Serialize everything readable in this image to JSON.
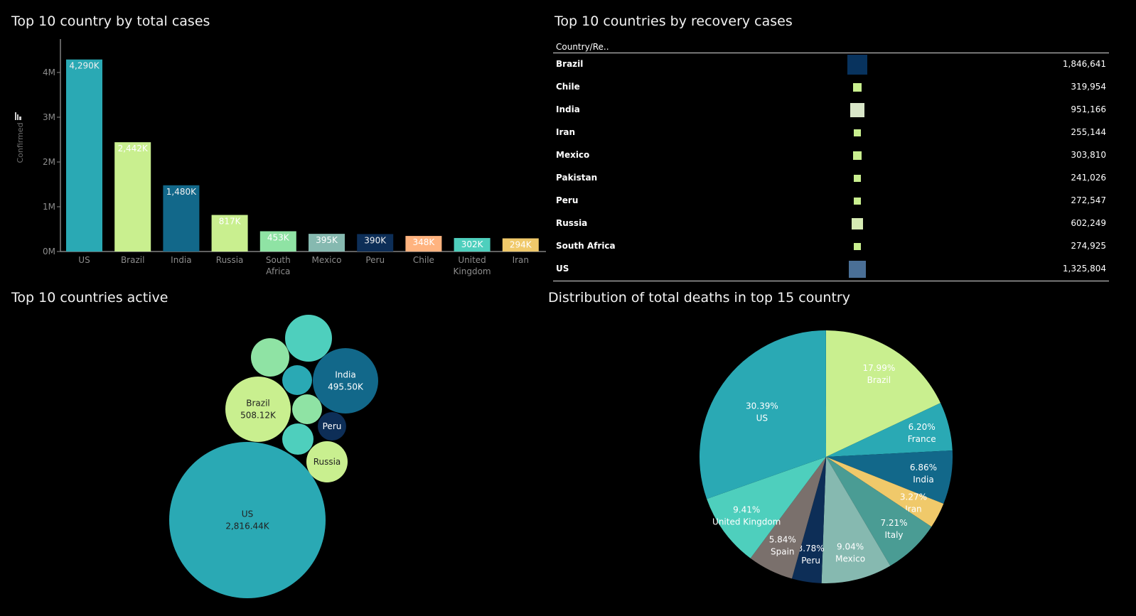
{
  "titles": {
    "bar": "Top 10 country by total cases",
    "recovery": "Top 10 countries by recovery cases",
    "active": "Top 10 countries active",
    "pie": "Distribution of total deaths in top 15 country"
  },
  "recovery_header": "Country/Re..",
  "chart_data": [
    {
      "type": "bar",
      "title": "Top 10 country by total cases",
      "ylabel": "Confirmed",
      "ylim": [
        0,
        4300000
      ],
      "yticks": [
        "0M",
        "1M",
        "2M",
        "3M",
        "4M"
      ],
      "categories": [
        "US",
        "Brazil",
        "India",
        "Russia",
        "South Africa",
        "Mexico",
        "Peru",
        "Chile",
        "United Kingdom",
        "Iran"
      ],
      "category_lines": [
        [
          "US"
        ],
        [
          "Brazil"
        ],
        [
          "India"
        ],
        [
          "Russia"
        ],
        [
          "South",
          "Africa"
        ],
        [
          "Mexico"
        ],
        [
          "Peru"
        ],
        [
          "Chile"
        ],
        [
          "United",
          "Kingdom"
        ],
        [
          "Iran"
        ]
      ],
      "values": [
        4290000,
        2442000,
        1480000,
        817000,
        453000,
        395000,
        390000,
        348000,
        302000,
        294000
      ],
      "labels": [
        "4,290K",
        "2,442K",
        "1,480K",
        "817K",
        "453K",
        "395K",
        "390K",
        "348K",
        "302K",
        "294K"
      ],
      "colors": [
        "#2aa9b4",
        "#c9ef8f",
        "#12688a",
        "#c9ef8f",
        "#8fe3a4",
        "#86b9b0",
        "#0d2e57",
        "#ffb37f",
        "#4ecfbd",
        "#f0c96a"
      ]
    },
    {
      "type": "table",
      "title": "Top 10 countries by recovery cases",
      "rows": [
        {
          "country": "Brazil",
          "value": 1846641,
          "label": "1,846,641",
          "color": "#08335e"
        },
        {
          "country": "Chile",
          "value": 319954,
          "label": "319,954",
          "color": "#c9ef8f"
        },
        {
          "country": "India",
          "value": 951166,
          "label": "951,166",
          "color": "#d9e6c8"
        },
        {
          "country": "Iran",
          "value": 255144,
          "label": "255,144",
          "color": "#c9ef8f"
        },
        {
          "country": "Mexico",
          "value": 303810,
          "label": "303,810",
          "color": "#c9ef8f"
        },
        {
          "country": "Pakistan",
          "value": 241026,
          "label": "241,026",
          "color": "#c9ef8f"
        },
        {
          "country": "Peru",
          "value": 272547,
          "label": "272,547",
          "color": "#c9ef8f"
        },
        {
          "country": "Russia",
          "value": 602249,
          "label": "602,249",
          "color": "#d6ebb4"
        },
        {
          "country": "South Africa",
          "value": 274925,
          "label": "274,925",
          "color": "#c9ef8f"
        },
        {
          "country": "US",
          "value": 1325804,
          "label": "1,325,804",
          "color": "#4a6f96"
        }
      ]
    },
    {
      "type": "bubble",
      "title": "Top 10 countries active",
      "bubbles": [
        {
          "name": "US",
          "value_label": "2,816.44K",
          "color": "#2aa9b4",
          "text_color": "#222222"
        },
        {
          "name": "Brazil",
          "value_label": "508.12K",
          "color": "#c9ef8f",
          "text_color": "#222222"
        },
        {
          "name": "India",
          "value_label": "495.50K",
          "color": "#12688a",
          "text_color": "#ffffff"
        },
        {
          "name": "Russia",
          "value_label": "",
          "color": "#c9ef8f",
          "text_color": "#222222"
        },
        {
          "name": "Peru",
          "value_label": "",
          "color": "#0d2e57",
          "text_color": "#ffffff"
        },
        {
          "name": "",
          "value_label": "",
          "color": "#4ecfbd",
          "text_color": "#222222"
        },
        {
          "name": "",
          "value_label": "",
          "color": "#8fe3a4",
          "text_color": "#222222"
        },
        {
          "name": "",
          "value_label": "",
          "color": "#2aa9b4",
          "text_color": "#222222"
        },
        {
          "name": "",
          "value_label": "",
          "color": "#8fe3a4",
          "text_color": "#222222"
        },
        {
          "name": "",
          "value_label": "",
          "color": "#4ecfbd",
          "text_color": "#222222"
        }
      ]
    },
    {
      "type": "pie",
      "title": "Distribution of total deaths in top 15 country",
      "slices": [
        {
          "name": "Brazil",
          "pct": 17.99,
          "label": "17.99%",
          "color": "#c9ef8f"
        },
        {
          "name": "France",
          "pct": 6.2,
          "label": "6.20%",
          "color": "#2aa9b4"
        },
        {
          "name": "India",
          "pct": 6.86,
          "label": "6.86%",
          "color": "#12688a"
        },
        {
          "name": "Iran",
          "pct": 3.27,
          "label": "3.27%",
          "color": "#f0c96a"
        },
        {
          "name": "Italy",
          "pct": 7.21,
          "label": "7.21%",
          "color": "#4a9c94"
        },
        {
          "name": "Mexico",
          "pct": 9.04,
          "label": "9.04%",
          "color": "#86b9b0"
        },
        {
          "name": "Peru",
          "pct": 3.78,
          "label": "3.78%",
          "color": "#0d2e57"
        },
        {
          "name": "Spain",
          "pct": 5.84,
          "label": "5.84%",
          "color": "#7a706c"
        },
        {
          "name": "United Kingdom",
          "pct": 9.41,
          "label": "9.41%",
          "color": "#4ecfbd"
        },
        {
          "name": "US",
          "pct": 30.39,
          "label": "30.39%",
          "color": "#2aa9b4"
        }
      ]
    }
  ]
}
